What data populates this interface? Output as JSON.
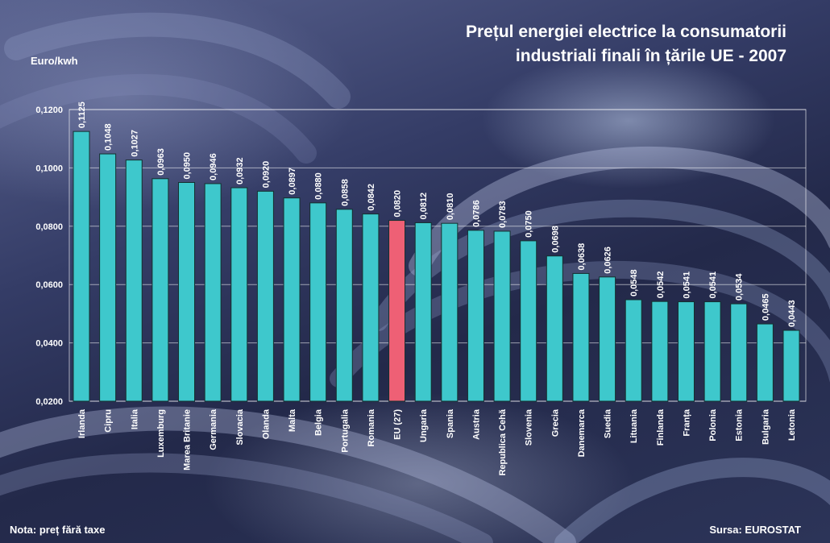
{
  "chart_data": {
    "type": "bar",
    "title_lines": [
      "Prețul energiei electrice la consumatorii",
      "industriali finali în țările UE - 2007"
    ],
    "ylabel": "Euro/kwh",
    "xlabel": "",
    "ylim": [
      0.02,
      0.12
    ],
    "yticks": [
      0.02,
      0.04,
      0.06,
      0.08,
      0.1,
      0.12
    ],
    "ytick_labels": [
      "0,0200",
      "0,0400",
      "0,0600",
      "0,0800",
      "0,1000",
      "0,1200"
    ],
    "grid": true,
    "categories": [
      "Irlanda",
      "Cipru",
      "Italia",
      "Luxemburg",
      "Marea Britanie",
      "Germania",
      "Slovacia",
      "Olanda",
      "Malta",
      "Belgia",
      "Portugalia",
      "Romania",
      "EU (27)",
      "Ungaria",
      "Spania",
      "Austria",
      "Republica Cehă",
      "Slovenia",
      "Grecia",
      "Danemarca",
      "Suedia",
      "Lituania",
      "Finlanda",
      "Franța",
      "Polonia",
      "Estonia",
      "Bulgaria",
      "Letonia"
    ],
    "values": [
      0.1125,
      0.1048,
      0.1027,
      0.0963,
      0.095,
      0.0946,
      0.0932,
      0.092,
      0.0897,
      0.088,
      0.0858,
      0.0842,
      0.082,
      0.0812,
      0.081,
      0.0786,
      0.0783,
      0.075,
      0.0698,
      0.0638,
      0.0626,
      0.0548,
      0.0542,
      0.0541,
      0.0541,
      0.0534,
      0.0465,
      0.0443
    ],
    "value_labels": [
      "0,1125",
      "0,1048",
      "0,1027",
      "0,0963",
      "0,0950",
      "0,0946",
      "0,0932",
      "0,0920",
      "0,0897",
      "0,0880",
      "0,0858",
      "0,0842",
      "0,0820",
      "0,0812",
      "0,0810",
      "0,0786",
      "0,0783",
      "0,0750",
      "0,0698",
      "0,0638",
      "0,0626",
      "0,0548",
      "0,0542",
      "0,0541",
      "0,0541",
      "0,0534",
      "0,0465",
      "0,0443"
    ],
    "highlight_category": "EU (27)",
    "colors": {
      "bar": "#3ec8cc",
      "highlight": "#ee6075",
      "bar_edge": "#14302f"
    }
  },
  "footer": {
    "note": "Nota: preț fără taxe",
    "source": "Sursa: EUROSTAT"
  }
}
